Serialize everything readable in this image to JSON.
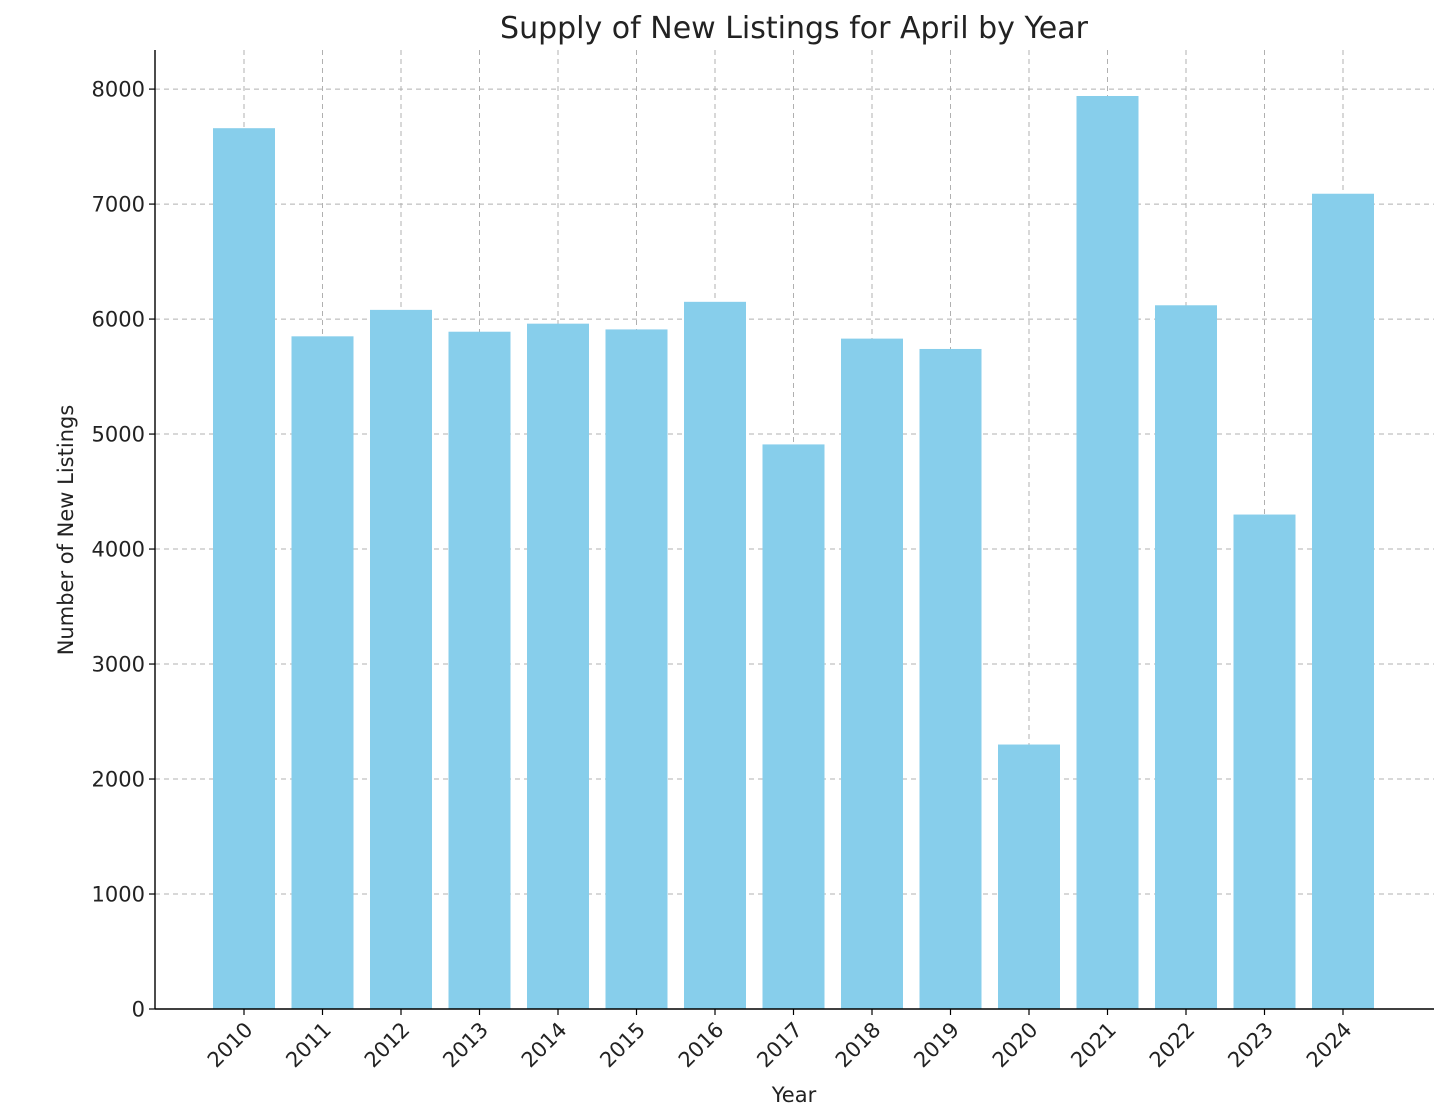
{
  "chart_data": {
    "type": "bar",
    "title": "Supply of New Listings for April by Year",
    "xlabel": "Year",
    "ylabel": "Number of New Listings",
    "categories": [
      "2010",
      "2011",
      "2012",
      "2013",
      "2014",
      "2015",
      "2016",
      "2017",
      "2018",
      "2019",
      "2020",
      "2021",
      "2022",
      "2023",
      "2024"
    ],
    "values": [
      7660,
      5850,
      6080,
      5890,
      5960,
      5910,
      6150,
      4910,
      5830,
      5740,
      2300,
      7940,
      6120,
      4300,
      7090
    ],
    "ylim": [
      0,
      8340
    ],
    "yticks": [
      0,
      1000,
      2000,
      3000,
      4000,
      5000,
      6000,
      7000,
      8000
    ],
    "bar_color": "#87ceeb",
    "grid": true,
    "xtick_rotation": -45
  }
}
